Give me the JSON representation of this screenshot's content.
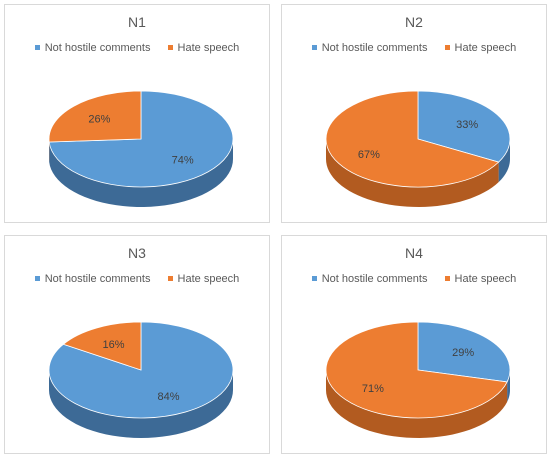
{
  "colors": {
    "not_hostile": "#5b9bd5",
    "not_hostile_side": "#3d6a96",
    "hate": "#ed7d31",
    "hate_side": "#b25b20"
  },
  "chart_data": [
    {
      "type": "pie",
      "title": "N1",
      "legend": [
        "Not hostile comments",
        "Hate speech"
      ],
      "legend_position": "top",
      "categories": [
        "Not hostile comments",
        "Hate speech"
      ],
      "values": [
        74,
        26
      ],
      "labels": [
        "74%",
        "26%"
      ]
    },
    {
      "type": "pie",
      "title": "N2",
      "legend": [
        "Not hostile comments",
        "Hate speech"
      ],
      "legend_position": "top",
      "categories": [
        "Not hostile comments",
        "Hate speech"
      ],
      "values": [
        33,
        67
      ],
      "labels": [
        "33%",
        "67%"
      ]
    },
    {
      "type": "pie",
      "title": "N3",
      "legend": [
        "Not hostile comments",
        "Hate speech"
      ],
      "legend_position": "top",
      "categories": [
        "Not hostile comments",
        "Hate speech"
      ],
      "values": [
        84,
        16
      ],
      "labels": [
        "84%",
        "16%"
      ]
    },
    {
      "type": "pie",
      "title": "N4",
      "legend": [
        "Not hostile comments",
        "Hate speech"
      ],
      "legend_position": "top",
      "categories": [
        "Not hostile comments",
        "Hate speech"
      ],
      "values": [
        29,
        71
      ],
      "labels": [
        "29%",
        "71%"
      ]
    }
  ]
}
